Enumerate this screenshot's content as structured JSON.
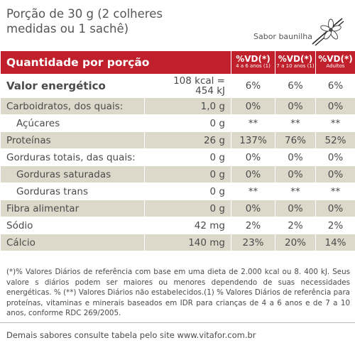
{
  "portion": {
    "line1": "Porção de 30 g (2 colheres",
    "line2": "medidas ou 1 sachê)"
  },
  "flavor": "Sabor baunilha",
  "icons": {
    "vanilla": "vanilla-flower-icon"
  },
  "colors": {
    "header": "#c0202b",
    "shade": "#dcd9cb"
  },
  "table": {
    "title": "Quantidade por porção",
    "columns": [
      {
        "label": "%VD(*)",
        "sub": "4 a 6 anos",
        "note": "(1)"
      },
      {
        "label": "%VD(*)",
        "sub": "7 a 10 anos",
        "note": "(1)"
      },
      {
        "label": "%VD(*)",
        "sub": "Adultos",
        "note": ""
      }
    ],
    "rows": [
      {
        "name": "Valor energético",
        "qty": "108 kcal =",
        "qty2": "454 kJ",
        "v1": "6%",
        "v2": "6%",
        "v3": "6%"
      },
      {
        "name": "Carboidratos, dos quais:",
        "qty": "1,0 g",
        "v1": "0%",
        "v2": "0%",
        "v3": "0%"
      },
      {
        "name": "Açúcares",
        "qty": "0 g",
        "v1": "**",
        "v2": "**",
        "v3": "**"
      },
      {
        "name": "Proteínas",
        "qty": "26 g",
        "v1": "137%",
        "v2": "76%",
        "v3": "52%"
      },
      {
        "name": "Gorduras totais, das quais:",
        "qty": "0 g",
        "v1": "0%",
        "v2": "0%",
        "v3": "0%"
      },
      {
        "name": "Gorduras saturadas",
        "qty": "0 g",
        "v1": "0%",
        "v2": "0%",
        "v3": "0%"
      },
      {
        "name": "Gorduras trans",
        "qty": "0 g",
        "v1": "**",
        "v2": "**",
        "v3": "**"
      },
      {
        "name": "Fibra alimentar",
        "qty": "0 g",
        "v1": "0%",
        "v2": "0%",
        "v3": "0%"
      },
      {
        "name": "Sódio",
        "qty": "42 mg",
        "v1": "2%",
        "v2": "2%",
        "v3": "2%"
      },
      {
        "name": "Cálcio",
        "qty": "140 mg",
        "v1": "23%",
        "v2": "20%",
        "v3": "14%"
      }
    ]
  },
  "footnote": "(*)% Valores Diários de referência com base em uma dieta de 2.000 kcal ou 8. 400 kJ. Seus valore s diários podem ser maiores ou menores dependendo de suas necessidades energéticas. % (**) Valores Diários não estabelecidos.(1) % Valores Diários de referência para proteínas, vitaminas e minerais baseados em IDR para crianças de 4 a 6 anos e de 7 a 10 anos, conforme RDC 269/2005.",
  "others": "Demais sabores consulte tabela pelo site www.vitafor.com.br"
}
